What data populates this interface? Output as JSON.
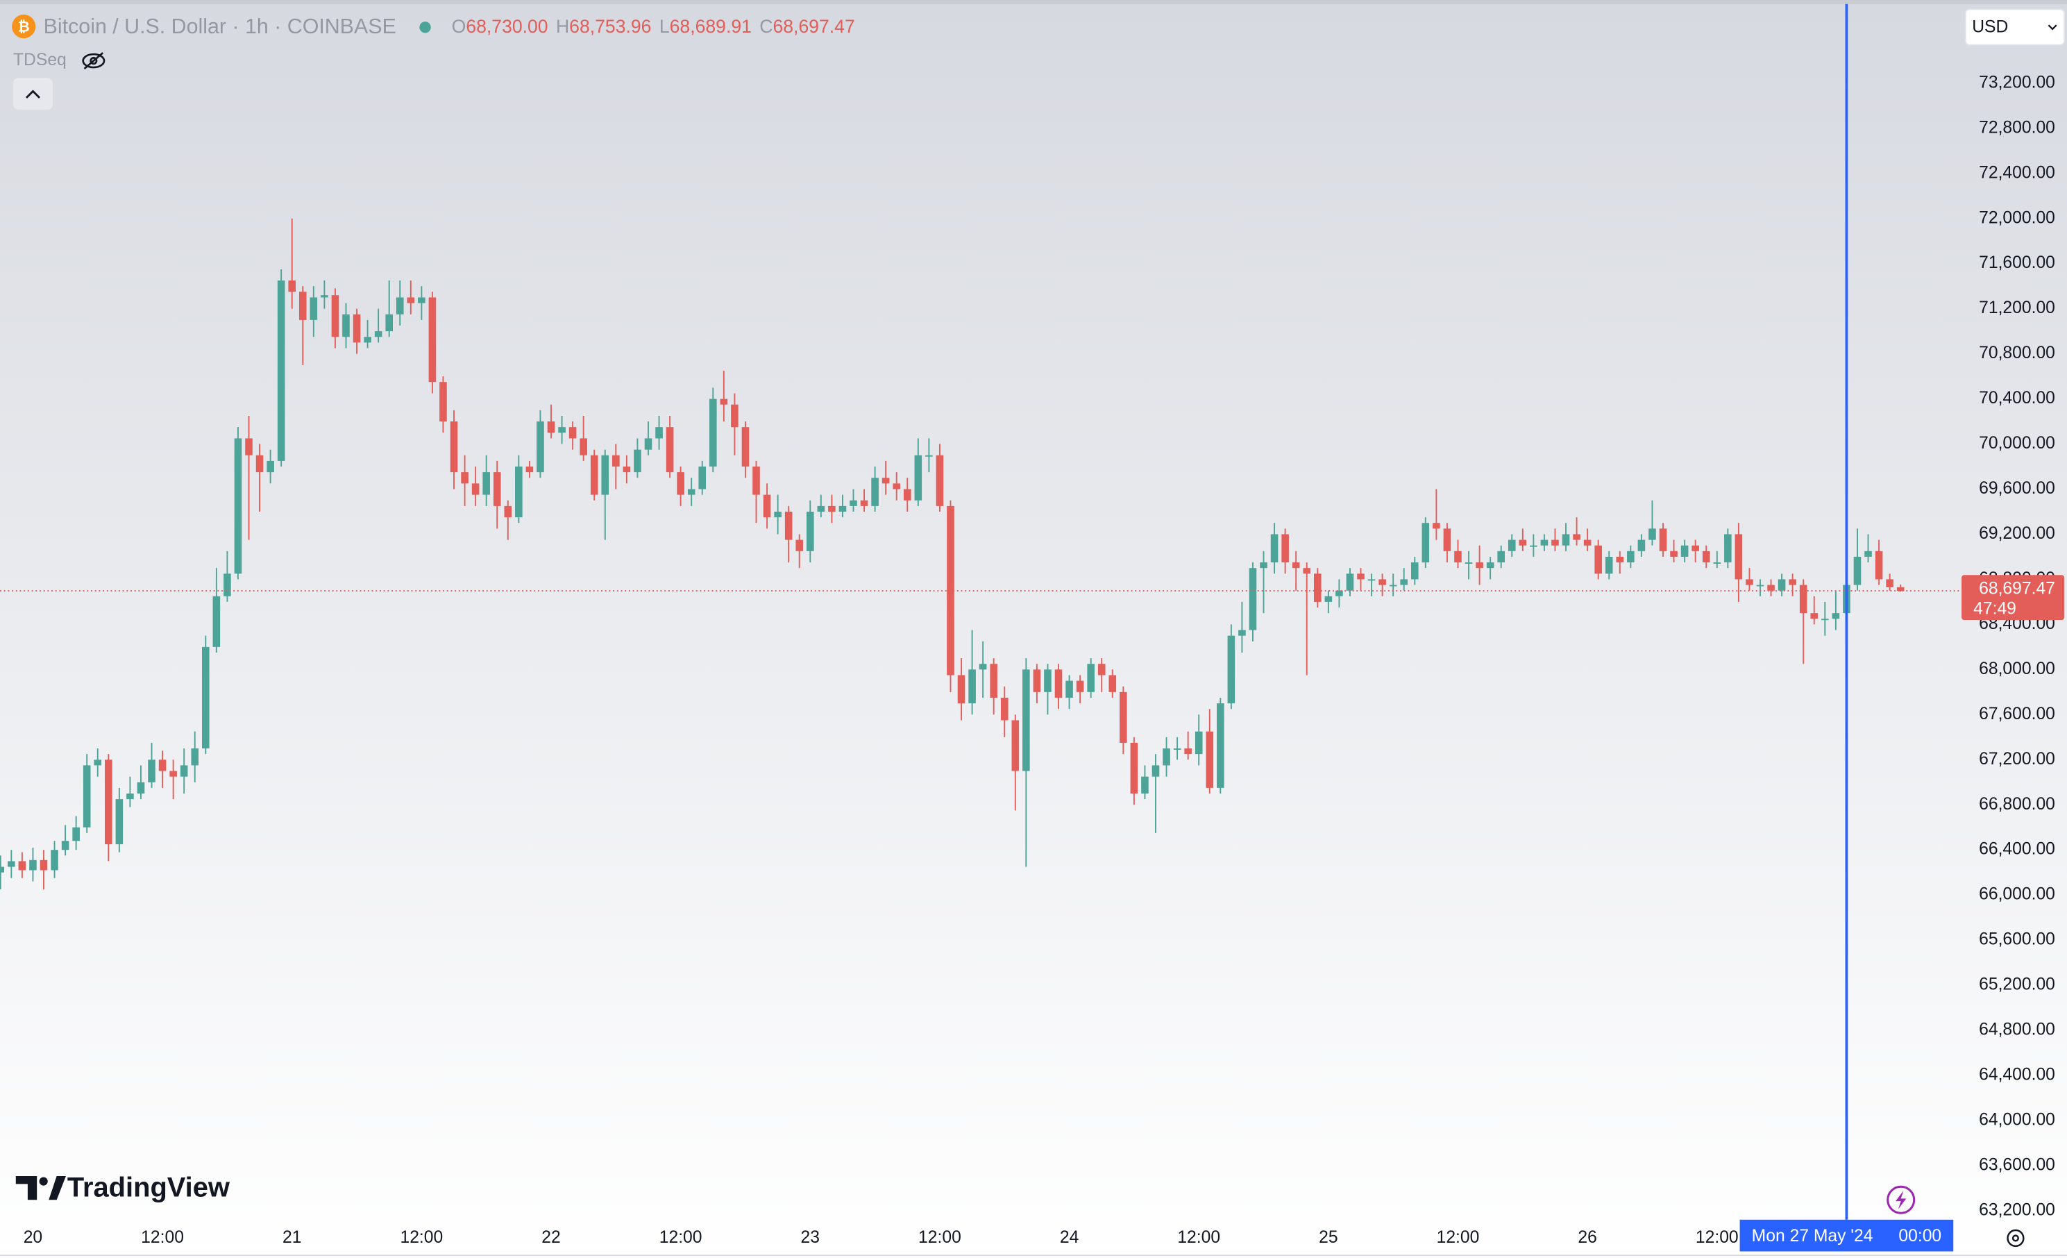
{
  "chart_data": {
    "type": "candlestick",
    "title": "Bitcoin / U.S. Dollar · 1h · COINBASE",
    "ohlc_keys": [
      "O",
      "H",
      "L",
      "C"
    ],
    "last_labels": [
      "68,730.00",
      "68,753.96",
      "68,689.91",
      "68,697.47"
    ],
    "indicator": "TDSeq",
    "currency": "USD",
    "brand": "TradingView",
    "up_color": "#4ca397",
    "down_color": "#e35d59",
    "crosshair": {
      "index": 171,
      "date_label": "Mon 27 May '24",
      "time_label": "00:00",
      "color": "#2962ff"
    },
    "price_tag": {
      "label": "68,697.47",
      "countdown": "47:49"
    },
    "xlim": [
      -0.05,
      181.65
    ],
    "xticks": [
      {
        "value": 3,
        "label": "20"
      },
      {
        "value": 15,
        "label": "12:00"
      },
      {
        "value": 27,
        "label": "21"
      },
      {
        "value": 39,
        "label": "12:00"
      },
      {
        "value": 51,
        "label": "22"
      },
      {
        "value": 63,
        "label": "12:00"
      },
      {
        "value": 75,
        "label": "23"
      },
      {
        "value": 87,
        "label": "12:00"
      },
      {
        "value": 99,
        "label": "24"
      },
      {
        "value": 111,
        "label": "12:00"
      },
      {
        "value": 123,
        "label": "25"
      },
      {
        "value": 135,
        "label": "12:00"
      },
      {
        "value": 147,
        "label": "26"
      },
      {
        "value": 159,
        "label": "12:00"
      }
    ],
    "ylim": [
      63097,
      73938
    ],
    "yticks": [
      {
        "value": 63200,
        "label": "63,200.00"
      },
      {
        "value": 63600,
        "label": "63,600.00"
      },
      {
        "value": 64000,
        "label": "64,000.00"
      },
      {
        "value": 64400,
        "label": "64,400.00"
      },
      {
        "value": 64800,
        "label": "64,800.00"
      },
      {
        "value": 65200,
        "label": "65,200.00"
      },
      {
        "value": 65600,
        "label": "65,600.00"
      },
      {
        "value": 66000,
        "label": "66,000.00"
      },
      {
        "value": 66400,
        "label": "66,400.00"
      },
      {
        "value": 66800,
        "label": "66,800.00"
      },
      {
        "value": 67200,
        "label": "67,200.00"
      },
      {
        "value": 67600,
        "label": "67,600.00"
      },
      {
        "value": 68000,
        "label": "68,000.00"
      },
      {
        "value": 68400,
        "label": "68,400.00"
      },
      {
        "value": 68800,
        "label": "68,800.00"
      },
      {
        "value": 69200,
        "label": "69,200.00"
      },
      {
        "value": 69600,
        "label": "69,600.00"
      },
      {
        "value": 70000,
        "label": "70,000.00"
      },
      {
        "value": 70400,
        "label": "70,400.00"
      },
      {
        "value": 70800,
        "label": "70,800.00"
      },
      {
        "value": 71200,
        "label": "71,200.00"
      },
      {
        "value": 71600,
        "label": "71,600.00"
      },
      {
        "value": 72000,
        "label": "72,000.00"
      },
      {
        "value": 72400,
        "label": "72,400.00"
      },
      {
        "value": 72800,
        "label": "72,800.00"
      },
      {
        "value": 73200,
        "label": "73,200.00"
      }
    ],
    "ohlc": [
      [
        66200,
        66350,
        66050,
        66250
      ],
      [
        66250,
        66400,
        66150,
        66300
      ],
      [
        66300,
        66380,
        66150,
        66220
      ],
      [
        66220,
        66420,
        66120,
        66310
      ],
      [
        66310,
        66400,
        66050,
        66220
      ],
      [
        66220,
        66480,
        66150,
        66400
      ],
      [
        66400,
        66620,
        66350,
        66480
      ],
      [
        66480,
        66700,
        66400,
        66600
      ],
      [
        66600,
        67250,
        66550,
        67150
      ],
      [
        67150,
        67300,
        67050,
        67200
      ],
      [
        67200,
        67250,
        66300,
        66450
      ],
      [
        66450,
        66950,
        66380,
        66850
      ],
      [
        66850,
        67050,
        66780,
        66900
      ],
      [
        66900,
        67150,
        66850,
        67000
      ],
      [
        67000,
        67350,
        66950,
        67200
      ],
      [
        67200,
        67280,
        66950,
        67100
      ],
      [
        67100,
        67200,
        66850,
        67050
      ],
      [
        67050,
        67300,
        66900,
        67150
      ],
      [
        67150,
        67450,
        67000,
        67300
      ],
      [
        67300,
        68300,
        67250,
        68200
      ],
      [
        68200,
        68900,
        68150,
        68650
      ],
      [
        68650,
        69050,
        68600,
        68850
      ],
      [
        68850,
        70150,
        68800,
        70050
      ],
      [
        70050,
        70250,
        69150,
        69900
      ],
      [
        69900,
        70000,
        69400,
        69750
      ],
      [
        69750,
        69950,
        69650,
        69850
      ],
      [
        69850,
        71550,
        69800,
        71450
      ],
      [
        71450,
        72000,
        71200,
        71350
      ],
      [
        71350,
        71400,
        70700,
        71100
      ],
      [
        71100,
        71400,
        70950,
        71300
      ],
      [
        71300,
        71450,
        71200,
        71320
      ],
      [
        71320,
        71380,
        70850,
        70950
      ],
      [
        70950,
        71250,
        70850,
        71150
      ],
      [
        71150,
        71200,
        70800,
        70900
      ],
      [
        70900,
        71100,
        70850,
        70950
      ],
      [
        70950,
        71200,
        70900,
        71000
      ],
      [
        71000,
        71450,
        70950,
        71150
      ],
      [
        71150,
        71450,
        71050,
        71300
      ],
      [
        71300,
        71450,
        71150,
        71250
      ],
      [
        71250,
        71400,
        71100,
        71300
      ],
      [
        71300,
        71350,
        70450,
        70550
      ],
      [
        70550,
        70600,
        70100,
        70200
      ],
      [
        70200,
        70300,
        69600,
        69750
      ],
      [
        69750,
        69900,
        69450,
        69650
      ],
      [
        69650,
        69800,
        69450,
        69550
      ],
      [
        69550,
        69900,
        69450,
        69750
      ],
      [
        69750,
        69850,
        69250,
        69450
      ],
      [
        69450,
        69500,
        69150,
        69350
      ],
      [
        69350,
        69900,
        69300,
        69800
      ],
      [
        69800,
        69850,
        69700,
        69750
      ],
      [
        69750,
        70300,
        69700,
        70200
      ],
      [
        70200,
        70350,
        70050,
        70100
      ],
      [
        70100,
        70250,
        70000,
        70150
      ],
      [
        70150,
        70200,
        69950,
        70050
      ],
      [
        70050,
        70250,
        69850,
        69900
      ],
      [
        69900,
        69950,
        69500,
        69550
      ],
      [
        69550,
        69950,
        69150,
        69900
      ],
      [
        69900,
        70000,
        69600,
        69800
      ],
      [
        69800,
        69900,
        69650,
        69750
      ],
      [
        69750,
        70050,
        69700,
        69950
      ],
      [
        69950,
        70200,
        69900,
        70050
      ],
      [
        70050,
        70250,
        69950,
        70150
      ],
      [
        70150,
        70250,
        69700,
        69750
      ],
      [
        69750,
        69800,
        69450,
        69550
      ],
      [
        69550,
        69700,
        69450,
        69600
      ],
      [
        69600,
        69850,
        69550,
        69800
      ],
      [
        69800,
        70500,
        69750,
        70400
      ],
      [
        70400,
        70650,
        70200,
        70350
      ],
      [
        70350,
        70450,
        69900,
        70150
      ],
      [
        70150,
        70200,
        69700,
        69800
      ],
      [
        69800,
        69850,
        69300,
        69550
      ],
      [
        69550,
        69650,
        69250,
        69350
      ],
      [
        69350,
        69550,
        69200,
        69400
      ],
      [
        69400,
        69450,
        68950,
        69150
      ],
      [
        69150,
        69200,
        68900,
        69050
      ],
      [
        69050,
        69500,
        68950,
        69400
      ],
      [
        69400,
        69550,
        69350,
        69450
      ],
      [
        69450,
        69550,
        69300,
        69400
      ],
      [
        69400,
        69550,
        69350,
        69450
      ],
      [
        69450,
        69600,
        69400,
        69500
      ],
      [
        69500,
        69600,
        69400,
        69450
      ],
      [
        69450,
        69800,
        69400,
        69700
      ],
      [
        69700,
        69850,
        69550,
        69650
      ],
      [
        69650,
        69750,
        69500,
        69600
      ],
      [
        69600,
        69700,
        69400,
        69500
      ],
      [
        69500,
        70050,
        69450,
        69900
      ],
      [
        69900,
        70050,
        69750,
        69900
      ],
      [
        69900,
        70000,
        69400,
        69450
      ],
      [
        69450,
        69500,
        67800,
        67950
      ],
      [
        67950,
        68100,
        67550,
        67700
      ],
      [
        67700,
        68350,
        67600,
        68000
      ],
      [
        68000,
        68250,
        67750,
        68050
      ],
      [
        68050,
        68100,
        67600,
        67750
      ],
      [
        67750,
        67850,
        67400,
        67550
      ],
      [
        67550,
        67600,
        66750,
        67100
      ],
      [
        67100,
        68100,
        66250,
        68000
      ],
      [
        68000,
        68050,
        67700,
        67800
      ],
      [
        67800,
        68050,
        67600,
        68000
      ],
      [
        68000,
        68050,
        67650,
        67750
      ],
      [
        67750,
        67950,
        67650,
        67900
      ],
      [
        67900,
        67950,
        67700,
        67800
      ],
      [
        67800,
        68100,
        67750,
        68050
      ],
      [
        68050,
        68100,
        67800,
        67950
      ],
      [
        67950,
        68000,
        67750,
        67800
      ],
      [
        67800,
        67850,
        67250,
        67350
      ],
      [
        67350,
        67400,
        66800,
        66900
      ],
      [
        66900,
        67150,
        66850,
        67050
      ],
      [
        67050,
        67250,
        66550,
        67150
      ],
      [
        67150,
        67400,
        67050,
        67300
      ],
      [
        67300,
        67400,
        67200,
        67300
      ],
      [
        67300,
        67450,
        67200,
        67250
      ],
      [
        67250,
        67600,
        67150,
        67450
      ],
      [
        67450,
        67650,
        66900,
        66950
      ],
      [
        66950,
        67750,
        66900,
        67700
      ],
      [
        67700,
        68400,
        67650,
        68300
      ],
      [
        68300,
        68600,
        68150,
        68350
      ],
      [
        68350,
        68950,
        68250,
        68900
      ],
      [
        68900,
        69050,
        68500,
        68950
      ],
      [
        68950,
        69300,
        68850,
        69200
      ],
      [
        69200,
        69250,
        68850,
        68950
      ],
      [
        68950,
        69050,
        68700,
        68900
      ],
      [
        68900,
        68950,
        67950,
        68850
      ],
      [
        68850,
        68900,
        68550,
        68600
      ],
      [
        68600,
        68700,
        68500,
        68650
      ],
      [
        68650,
        68800,
        68550,
        68700
      ],
      [
        68700,
        68900,
        68650,
        68850
      ],
      [
        68850,
        68900,
        68700,
        68800
      ],
      [
        68800,
        68850,
        68650,
        68800
      ],
      [
        68800,
        68850,
        68650,
        68750
      ],
      [
        68750,
        68850,
        68650,
        68750
      ],
      [
        68750,
        68900,
        68700,
        68800
      ],
      [
        68800,
        69000,
        68750,
        68950
      ],
      [
        68950,
        69350,
        68900,
        69300
      ],
      [
        69300,
        69600,
        69150,
        69250
      ],
      [
        69250,
        69300,
        68950,
        69050
      ],
      [
        69050,
        69150,
        68900,
        68950
      ],
      [
        68950,
        69050,
        68800,
        68950
      ],
      [
        68950,
        69100,
        68750,
        68900
      ],
      [
        68900,
        69000,
        68800,
        68950
      ],
      [
        68950,
        69100,
        68900,
        69050
      ],
      [
        69050,
        69200,
        69000,
        69150
      ],
      [
        69150,
        69250,
        69050,
        69100
      ],
      [
        69100,
        69200,
        69000,
        69100
      ],
      [
        69100,
        69200,
        69050,
        69150
      ],
      [
        69150,
        69250,
        69050,
        69100
      ],
      [
        69100,
        69300,
        69050,
        69200
      ],
      [
        69200,
        69350,
        69100,
        69150
      ],
      [
        69150,
        69250,
        69050,
        69100
      ],
      [
        69100,
        69150,
        68800,
        68850
      ],
      [
        68850,
        69050,
        68800,
        69000
      ],
      [
        69000,
        69050,
        68850,
        68950
      ],
      [
        68950,
        69100,
        68900,
        69050
      ],
      [
        69050,
        69200,
        69000,
        69150
      ],
      [
        69150,
        69500,
        69100,
        69250
      ],
      [
        69250,
        69300,
        69000,
        69050
      ],
      [
        69050,
        69150,
        68950,
        69000
      ],
      [
        69000,
        69150,
        68950,
        69100
      ],
      [
        69100,
        69150,
        68950,
        69050
      ],
      [
        69050,
        69100,
        68900,
        68950
      ],
      [
        68950,
        69050,
        68900,
        68950
      ],
      [
        68950,
        69250,
        68900,
        69200
      ],
      [
        69200,
        69300,
        68600,
        68800
      ],
      [
        68800,
        68900,
        68700,
        68750
      ],
      [
        68750,
        68800,
        68650,
        68750
      ],
      [
        68750,
        68800,
        68650,
        68700
      ],
      [
        68700,
        68850,
        68650,
        68800
      ],
      [
        68800,
        68850,
        68650,
        68750
      ],
      [
        68750,
        68800,
        68050,
        68500
      ],
      [
        68500,
        68650,
        68400,
        68450
      ],
      [
        68450,
        68600,
        68300,
        68450
      ],
      [
        68450,
        68700,
        68350,
        68500
      ],
      [
        68500,
        68850,
        68400,
        68750
      ],
      [
        68750,
        69250,
        68700,
        69000
      ],
      [
        69000,
        69200,
        68950,
        69050
      ],
      [
        69050,
        69150,
        68750,
        68800
      ],
      [
        68800,
        68850,
        68700,
        68730
      ],
      [
        68730,
        68753.96,
        68689.91,
        68697.47
      ]
    ]
  }
}
